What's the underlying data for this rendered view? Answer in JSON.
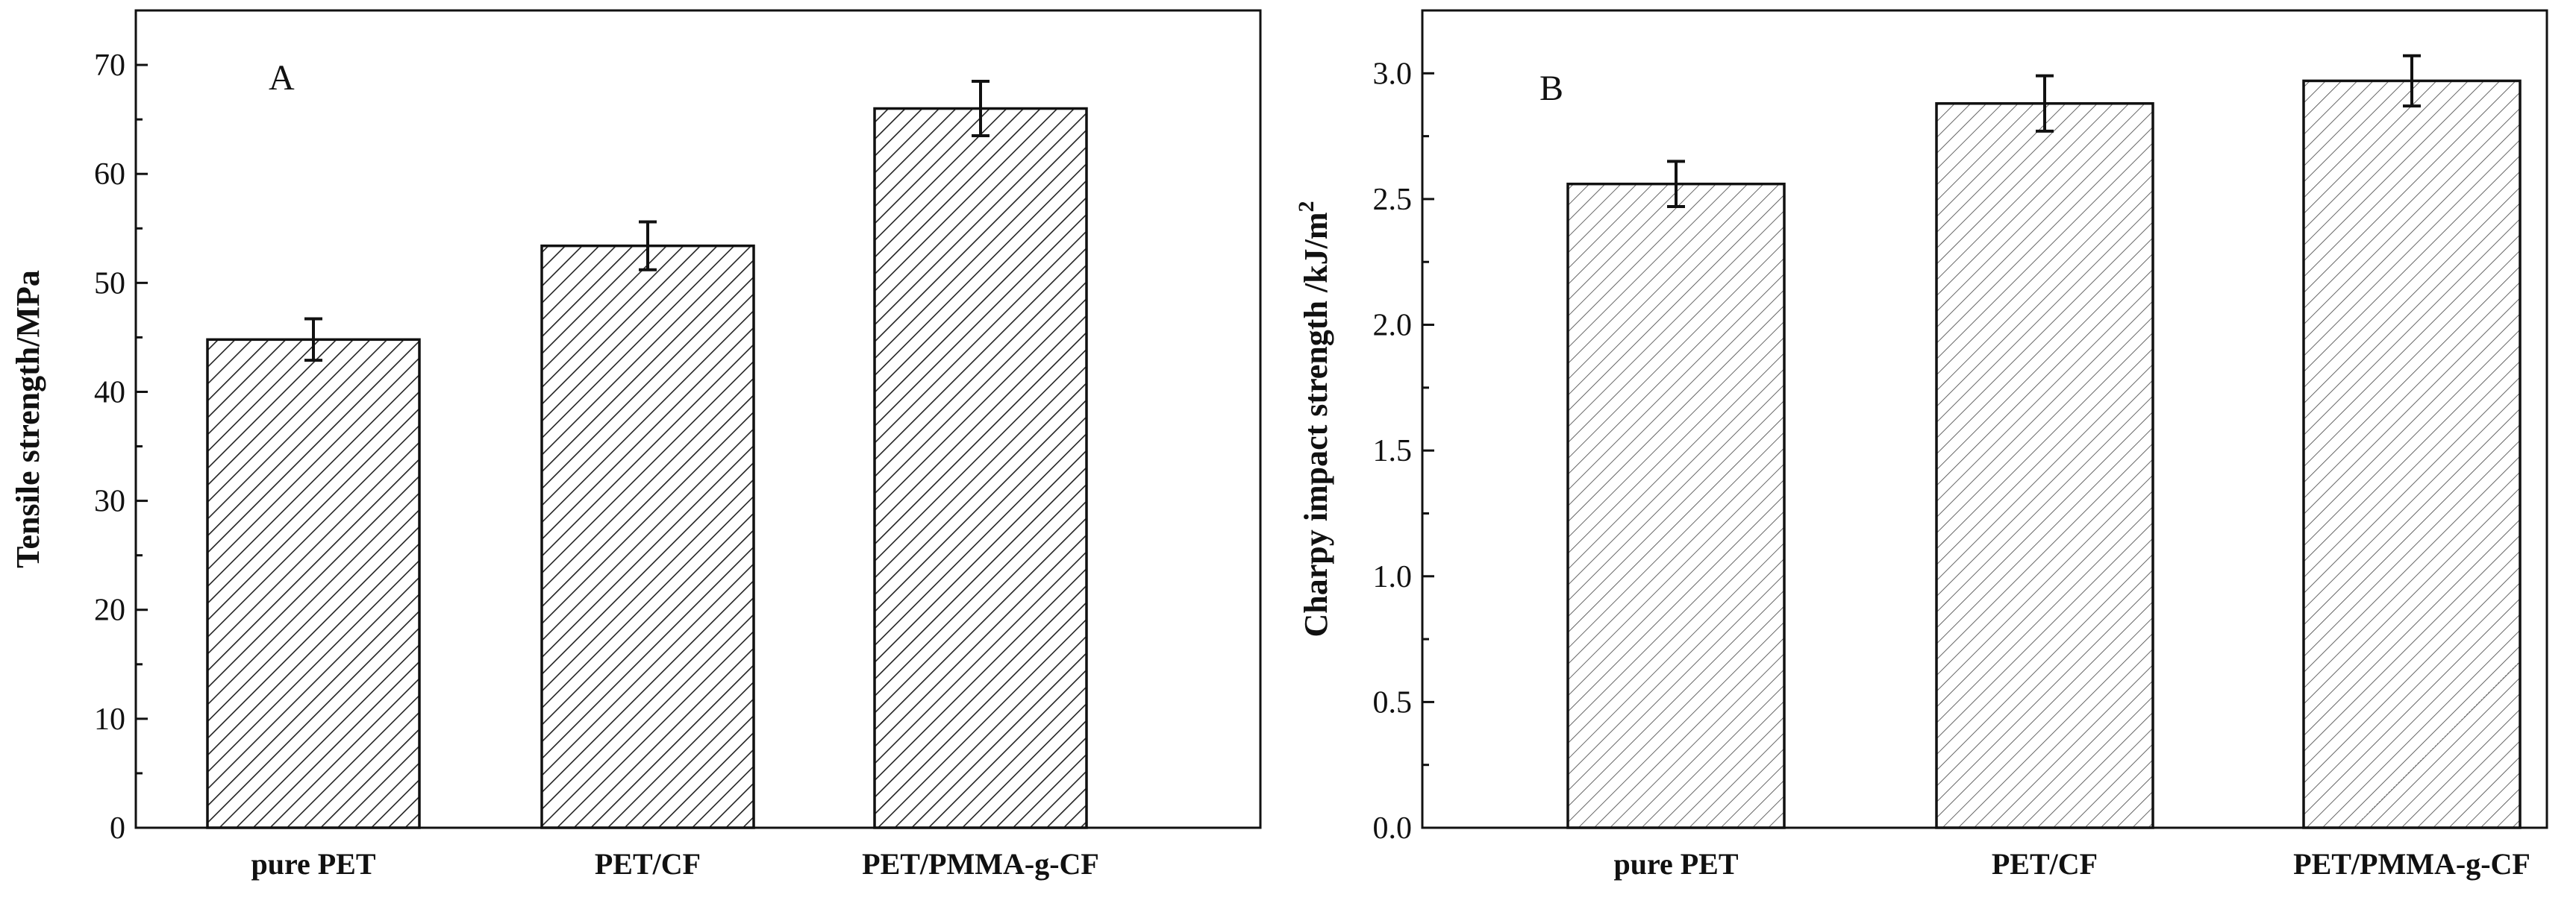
{
  "colors": {
    "ink": "#111111",
    "hatch_a": "#222222",
    "hatch_b": "#555555",
    "background": "#ffffff"
  },
  "chart_data": [
    {
      "type": "bar",
      "panel_label": "A",
      "title": "",
      "xlabel": "",
      "ylabel": "Tensile strength/MPa",
      "categories": [
        "pure PET",
        "PET/CF",
        "PET/PMMA-g-CF"
      ],
      "values": [
        44.8,
        53.4,
        66.0
      ],
      "errors": [
        1.9,
        2.2,
        2.5
      ],
      "ylim": [
        0,
        75
      ],
      "yticks": [
        0,
        10,
        20,
        30,
        40,
        50,
        60,
        70
      ],
      "ytick_labels": [
        "0",
        "10",
        "20",
        "30",
        "40",
        "50",
        "60",
        "70"
      ],
      "grid": false,
      "pattern": "dense diagonal hatch"
    },
    {
      "type": "bar",
      "panel_label": "B",
      "title": "",
      "xlabel": "",
      "ylabel_main": "Charpy impact strength /kJ/m",
      "ylabel_sup": "2",
      "categories": [
        "pure PET",
        "PET/CF",
        "PET/PMMA-g-CF"
      ],
      "values": [
        2.56,
        2.88,
        2.97
      ],
      "errors": [
        0.09,
        0.11,
        0.1
      ],
      "ylim": [
        0,
        3.25
      ],
      "yticks": [
        0.0,
        0.5,
        1.0,
        1.5,
        2.0,
        2.5,
        3.0
      ],
      "ytick_labels": [
        "0.0",
        "0.5",
        "1.0",
        "1.5",
        "2.0",
        "2.5",
        "3.0"
      ],
      "grid": false,
      "pattern": "light diagonal hatch"
    }
  ]
}
